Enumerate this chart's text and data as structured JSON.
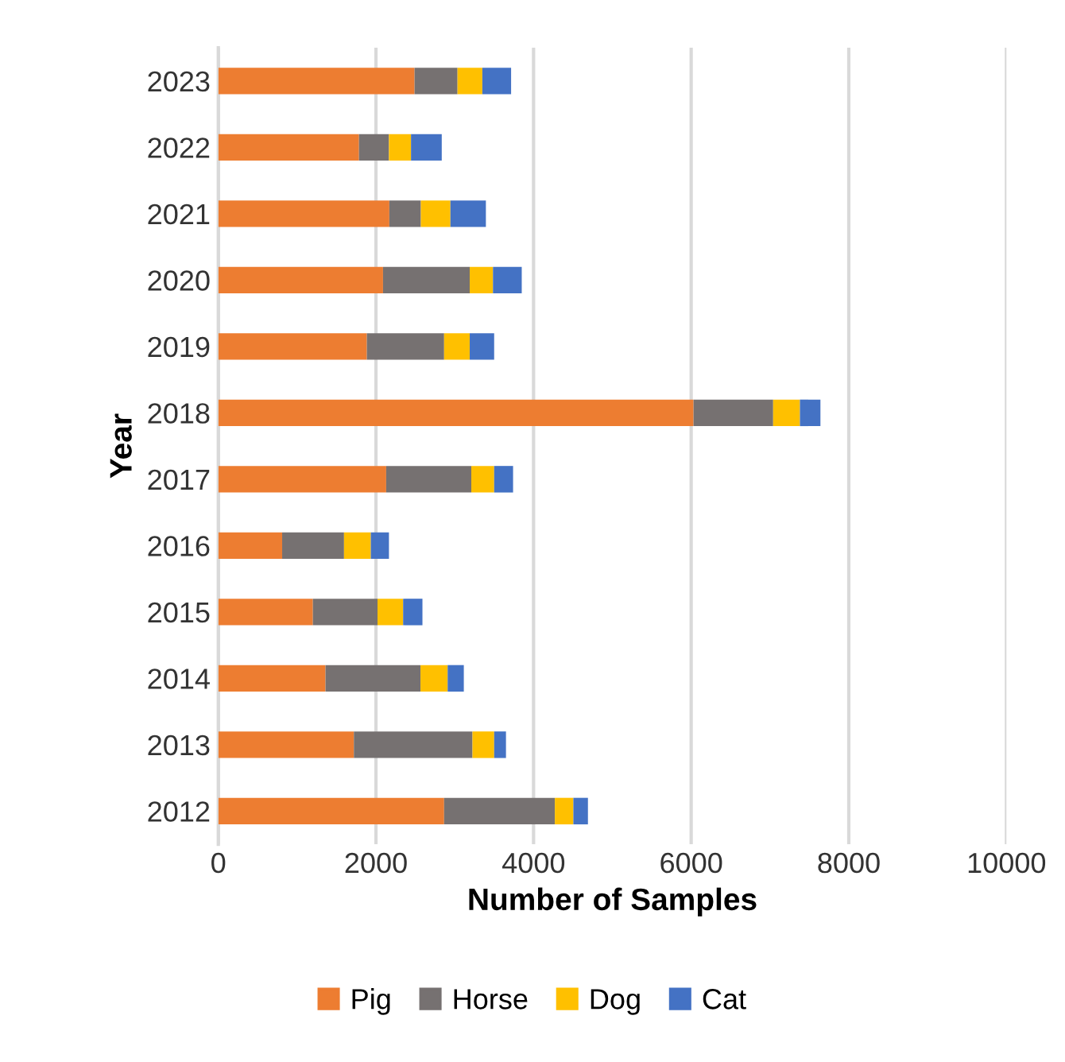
{
  "chart_data": {
    "type": "bar",
    "orientation": "horizontal",
    "stacked": true,
    "xlabel": "Number of Samples",
    "ylabel": "Year",
    "categories": [
      "2023",
      "2022",
      "2021",
      "2020",
      "2019",
      "2018",
      "2017",
      "2016",
      "2015",
      "2014",
      "2013",
      "2012"
    ],
    "series": [
      {
        "name": "Pig",
        "color": "#ed7d31",
        "values": [
          2490,
          1785,
          2170,
          2090,
          1885,
          6030,
          2130,
          810,
          1200,
          1360,
          1720,
          2865
        ]
      },
      {
        "name": "Horse",
        "color": "#767171",
        "values": [
          545,
          380,
          400,
          1100,
          980,
          1010,
          1080,
          785,
          820,
          1205,
          1505,
          1405
        ]
      },
      {
        "name": "Dog",
        "color": "#ffc000",
        "values": [
          315,
          280,
          375,
          295,
          325,
          340,
          290,
          340,
          325,
          345,
          275,
          235
        ]
      },
      {
        "name": "Cat",
        "color": "#4472c4",
        "values": [
          365,
          390,
          450,
          365,
          310,
          260,
          240,
          230,
          245,
          205,
          150,
          185
        ]
      }
    ],
    "xlim": [
      0,
      10000
    ],
    "xticks": [
      0,
      2000,
      4000,
      6000,
      8000,
      10000
    ],
    "grid": "x",
    "legend": "bottom"
  }
}
